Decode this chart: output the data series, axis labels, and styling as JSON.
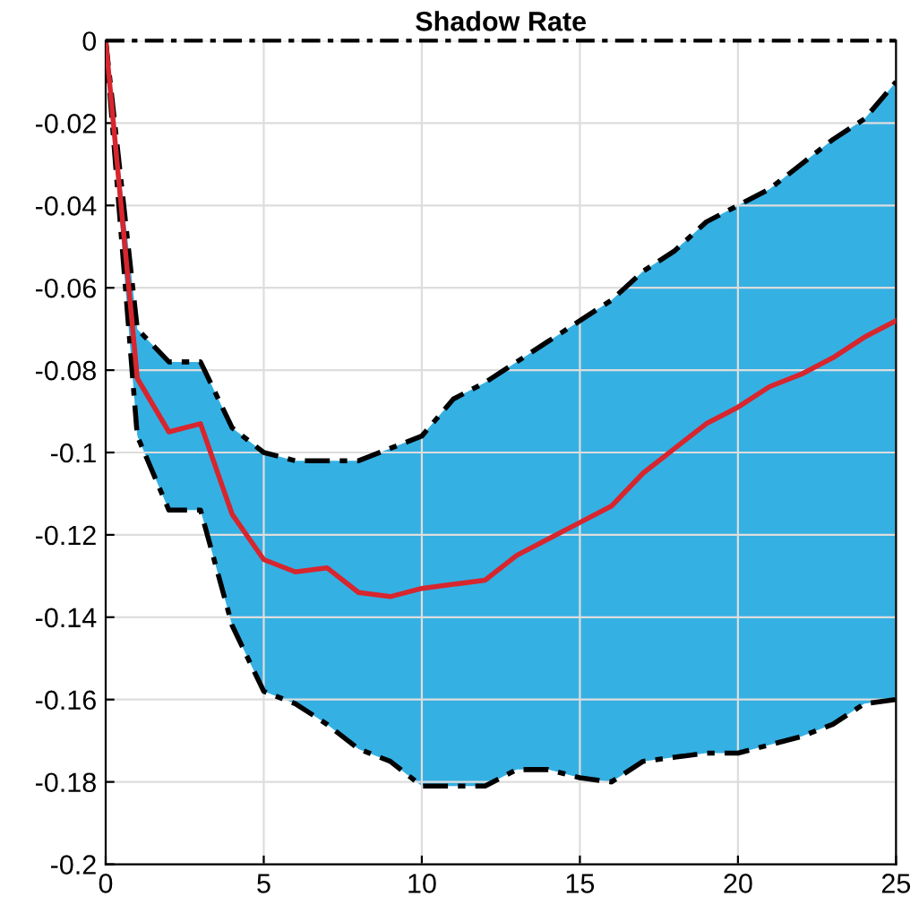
{
  "chart_data": {
    "type": "line",
    "title": "Shadow Rate",
    "x": [
      0,
      1,
      2,
      3,
      4,
      5,
      6,
      7,
      8,
      9,
      10,
      11,
      12,
      13,
      14,
      15,
      16,
      17,
      18,
      19,
      20,
      21,
      22,
      23,
      24,
      25
    ],
    "series": [
      {
        "color": "#000000",
        "line_style": "dashed",
        "values": [
          0,
          -0.07,
          -0.078,
          -0.078,
          -0.094,
          -0.1,
          -0.102,
          -0.102,
          -0.102,
          -0.099,
          -0.096,
          -0.087,
          -0.083,
          -0.078,
          -0.073,
          -0.068,
          -0.063,
          -0.056,
          -0.051,
          -0.044,
          -0.04,
          -0.036,
          -0.03,
          -0.024,
          -0.019,
          -0.01
        ]
      },
      {
        "color": "#000000",
        "line_style": "dashed",
        "values": [
          0,
          -0.096,
          -0.114,
          -0.114,
          -0.142,
          -0.158,
          -0.161,
          -0.166,
          -0.172,
          -0.175,
          -0.181,
          -0.181,
          -0.181,
          -0.177,
          -0.177,
          -0.179,
          -0.18,
          -0.175,
          -0.174,
          -0.173,
          -0.173,
          -0.171,
          -0.169,
          -0.166,
          -0.161,
          -0.16
        ]
      },
      {
        "color": "#d7262e",
        "values": [
          0,
          -0.082,
          -0.095,
          -0.093,
          -0.115,
          -0.126,
          -0.129,
          -0.128,
          -0.134,
          -0.135,
          -0.133,
          -0.132,
          -0.131,
          -0.125,
          -0.121,
          -0.117,
          -0.113,
          -0.105,
          -0.099,
          -0.093,
          -0.089,
          -0.084,
          -0.081,
          -0.077,
          -0.072,
          -0.068
        ],
        "upper": [
          0,
          -0.07,
          -0.078,
          -0.078,
          -0.094,
          -0.1,
          -0.102,
          -0.102,
          -0.102,
          -0.099,
          -0.096,
          -0.087,
          -0.083,
          -0.078,
          -0.073,
          -0.068,
          -0.063,
          -0.056,
          -0.051,
          -0.044,
          -0.04,
          -0.036,
          -0.03,
          -0.024,
          -0.019,
          -0.01
        ],
        "lower": [
          0,
          -0.096,
          -0.114,
          -0.114,
          -0.142,
          -0.158,
          -0.161,
          -0.166,
          -0.172,
          -0.175,
          -0.181,
          -0.181,
          -0.181,
          -0.177,
          -0.177,
          -0.179,
          -0.18,
          -0.175,
          -0.174,
          -0.173,
          -0.173,
          -0.171,
          -0.169,
          -0.166,
          -0.161,
          -0.16
        ]
      }
    ],
    "ref_lines": [
      {
        "axis": "y",
        "value": 0,
        "label": null,
        "color": "#000000",
        "line_style": "dashed"
      }
    ],
    "xlim": [
      0,
      25
    ],
    "xticks": [
      0,
      5,
      10,
      15,
      20,
      25
    ],
    "ylim": [
      -0.2,
      0
    ],
    "yticks": [
      -0.2,
      -0.18,
      -0.16,
      -0.14,
      -0.12,
      -0.1,
      -0.08,
      -0.06,
      -0.04,
      -0.02,
      0
    ],
    "grid": true,
    "marker": "none",
    "line_style": "solid"
  }
}
